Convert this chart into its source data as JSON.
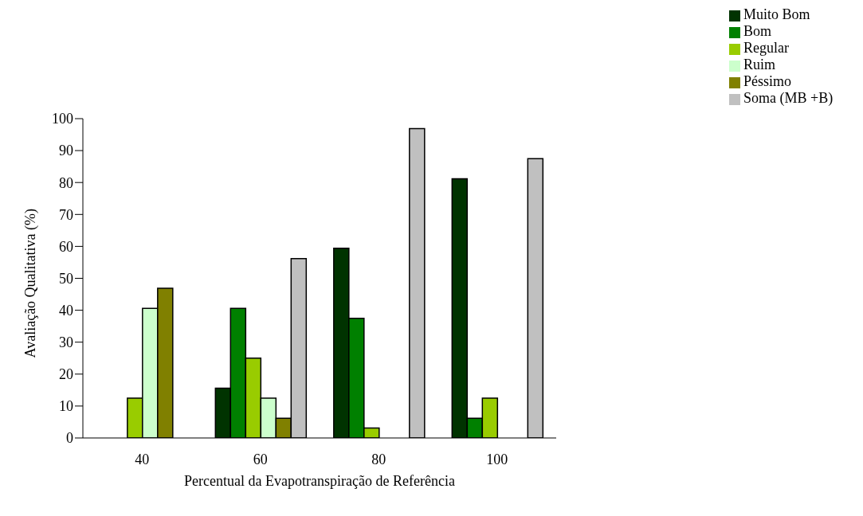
{
  "chart_data": {
    "type": "bar",
    "xlabel": "Percentual da Evapotranspiração de Referência",
    "ylabel": "Avaliação Qualitativa (%)",
    "categories": [
      "40",
      "60",
      "80",
      "100"
    ],
    "series": [
      {
        "name": "Muito Bom",
        "color": "#003300",
        "values": [
          0,
          15.6,
          59.4,
          81.2
        ]
      },
      {
        "name": "Bom",
        "color": "#008000",
        "values": [
          0,
          40.6,
          37.5,
          6.2
        ]
      },
      {
        "name": "Regular",
        "color": "#99cc00",
        "values": [
          12.5,
          25,
          3.1,
          12.5
        ]
      },
      {
        "name": "Ruim",
        "color": "#ccffcc",
        "values": [
          40.6,
          12.5,
          0,
          0
        ]
      },
      {
        "name": "Péssimo",
        "color": "#808000",
        "values": [
          46.9,
          6.2,
          0,
          0
        ]
      },
      {
        "name": "Soma (MB +B)",
        "color": "#c0c0c0",
        "values": [
          0,
          56.2,
          96.9,
          87.5
        ]
      }
    ],
    "ylim": [
      0,
      100
    ],
    "yticks": [
      0,
      10,
      20,
      30,
      40,
      50,
      60,
      70,
      80,
      90,
      100
    ],
    "grid": false,
    "legend": "top right"
  }
}
